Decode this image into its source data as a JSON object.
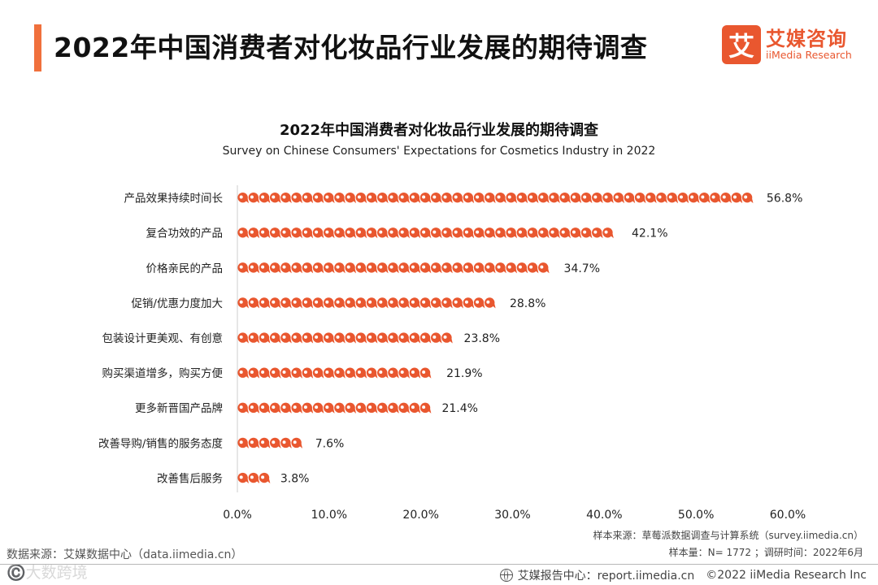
{
  "header": {
    "title": "2022年中国消费者对化妆品行业发展的期待调查",
    "logo_mark": "艾",
    "logo_cn": "艾媒咨询",
    "logo_en": "iiMedia Research"
  },
  "colors": {
    "accent": "#f0703c",
    "brand": "#e9572f",
    "axis": "#cccccc"
  },
  "icons": {
    "bar_unit": "speech-bubble-icon",
    "footer": "globe-icon"
  },
  "chart_data": {
    "type": "bar",
    "orientation": "horizontal",
    "title": "2022年中国消费者对化妆品行业发展的期待调查",
    "subtitle": "Survey on Chinese Consumers' Expectations for Cosmetics Industry in 2022",
    "categories": [
      "产品效果持续时间长",
      "复合功效的产品",
      "价格亲民的产品",
      "促销/优惠力度加大",
      "包装设计更美观、有创意",
      "购买渠道增多，购买方便",
      "更多新晋国产品牌",
      "改善导购/销售的服务态度",
      "改善售后服务"
    ],
    "values": [
      56.8,
      42.1,
      34.7,
      28.8,
      23.8,
      21.9,
      21.4,
      7.6,
      3.8
    ],
    "value_labels": [
      "56.8%",
      "42.1%",
      "34.7%",
      "28.8%",
      "23.8%",
      "21.9%",
      "21.4%",
      "7.6%",
      "3.8%"
    ],
    "xlim": [
      0,
      60
    ],
    "xticks": [
      0,
      10,
      20,
      30,
      40,
      50,
      60
    ],
    "xtick_labels": [
      "0.0%",
      "10.0%",
      "20.0%",
      "30.0%",
      "40.0%",
      "50.0%",
      "60.0%"
    ],
    "xlabel": "",
    "ylabel": "",
    "grid": false,
    "legend": "none"
  },
  "footer": {
    "source": "数据来源：艾媒数据中心（data.iimedia.cn）",
    "watermark": "©️大数跨境",
    "sample_source": "样本来源：草莓派数据调查与计算系统（survey.iimedia.cn）",
    "sample_size": "样本量：N= 1772 ；调研时间：2022年6月",
    "report_center": "艾媒报告中心：report.iimedia.cn",
    "copyright": "©2022  iiMedia Research  Inc"
  }
}
